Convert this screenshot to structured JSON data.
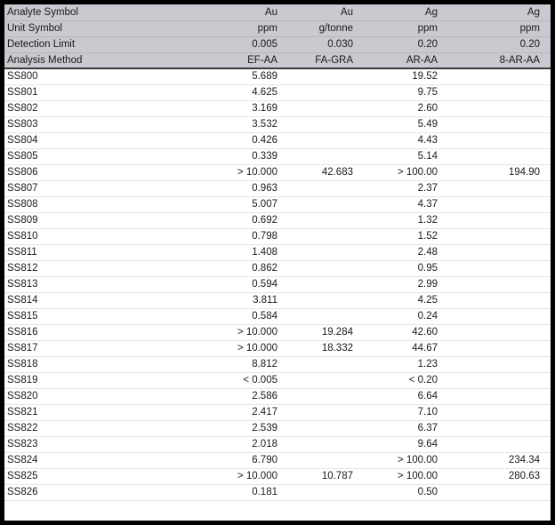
{
  "colors": {
    "frame": "#000000",
    "header_bg": "#c9c9cf",
    "header_divider": "#3a3a3a",
    "row_divider": "#e3e3e3",
    "text": "#1a1a1a"
  },
  "table": {
    "header_rows": [
      {
        "label": "Analyte Symbol",
        "values": [
          "Au",
          "Au",
          "Ag",
          "Ag"
        ]
      },
      {
        "label": "Unit Symbol",
        "values": [
          "ppm",
          "g/tonne",
          "ppm",
          "ppm"
        ]
      },
      {
        "label": "Detection Limit",
        "values": [
          "0.005",
          "0.030",
          "0.20",
          "0.20"
        ]
      },
      {
        "label": "Analysis Method",
        "values": [
          "EF-AA",
          "FA-GRA",
          "AR-AA",
          "8-AR-AA"
        ]
      }
    ],
    "rows": [
      {
        "sample": "SS800",
        "values": [
          "5.689",
          "",
          "19.52",
          ""
        ]
      },
      {
        "sample": "SS801",
        "values": [
          "4.625",
          "",
          "9.75",
          ""
        ]
      },
      {
        "sample": "SS802",
        "values": [
          "3.169",
          "",
          "2.60",
          ""
        ]
      },
      {
        "sample": "SS803",
        "values": [
          "3.532",
          "",
          "5.49",
          ""
        ]
      },
      {
        "sample": "SS804",
        "values": [
          "0.426",
          "",
          "4.43",
          ""
        ]
      },
      {
        "sample": "SS805",
        "values": [
          "0.339",
          "",
          "5.14",
          ""
        ]
      },
      {
        "sample": "SS806",
        "values": [
          "> 10.000",
          "42.683",
          "> 100.00",
          "194.90"
        ]
      },
      {
        "sample": "SS807",
        "values": [
          "0.963",
          "",
          "2.37",
          ""
        ]
      },
      {
        "sample": "SS808",
        "values": [
          "5.007",
          "",
          "4.37",
          ""
        ]
      },
      {
        "sample": "SS809",
        "values": [
          "0.692",
          "",
          "1.32",
          ""
        ]
      },
      {
        "sample": "SS810",
        "values": [
          "0.798",
          "",
          "1.52",
          ""
        ]
      },
      {
        "sample": "SS811",
        "values": [
          "1.408",
          "",
          "2.48",
          ""
        ]
      },
      {
        "sample": "SS812",
        "values": [
          "0.862",
          "",
          "0.95",
          ""
        ]
      },
      {
        "sample": "SS813",
        "values": [
          "0.594",
          "",
          "2.99",
          ""
        ]
      },
      {
        "sample": "SS814",
        "values": [
          "3.811",
          "",
          "4.25",
          ""
        ]
      },
      {
        "sample": "SS815",
        "values": [
          "0.584",
          "",
          "0.24",
          ""
        ]
      },
      {
        "sample": "SS816",
        "values": [
          "> 10.000",
          "19.284",
          "42.60",
          ""
        ]
      },
      {
        "sample": "SS817",
        "values": [
          "> 10.000",
          "18.332",
          "44.67",
          ""
        ]
      },
      {
        "sample": "SS818",
        "values": [
          "8.812",
          "",
          "1.23",
          ""
        ]
      },
      {
        "sample": "SS819",
        "values": [
          "< 0.005",
          "",
          "< 0.20",
          ""
        ]
      },
      {
        "sample": "SS820",
        "values": [
          "2.586",
          "",
          "6.64",
          ""
        ]
      },
      {
        "sample": "SS821",
        "values": [
          "2.417",
          "",
          "7.10",
          ""
        ]
      },
      {
        "sample": "SS822",
        "values": [
          "2.539",
          "",
          "6.37",
          ""
        ]
      },
      {
        "sample": "SS823",
        "values": [
          "2.018",
          "",
          "9.64",
          ""
        ]
      },
      {
        "sample": "SS824",
        "values": [
          "6.790",
          "",
          "> 100.00",
          "234.34"
        ]
      },
      {
        "sample": "SS825",
        "values": [
          "> 10.000",
          "10.787",
          "> 100.00",
          "280.63"
        ]
      },
      {
        "sample": "SS826",
        "values": [
          "0.181",
          "",
          "0.50",
          ""
        ]
      }
    ]
  }
}
